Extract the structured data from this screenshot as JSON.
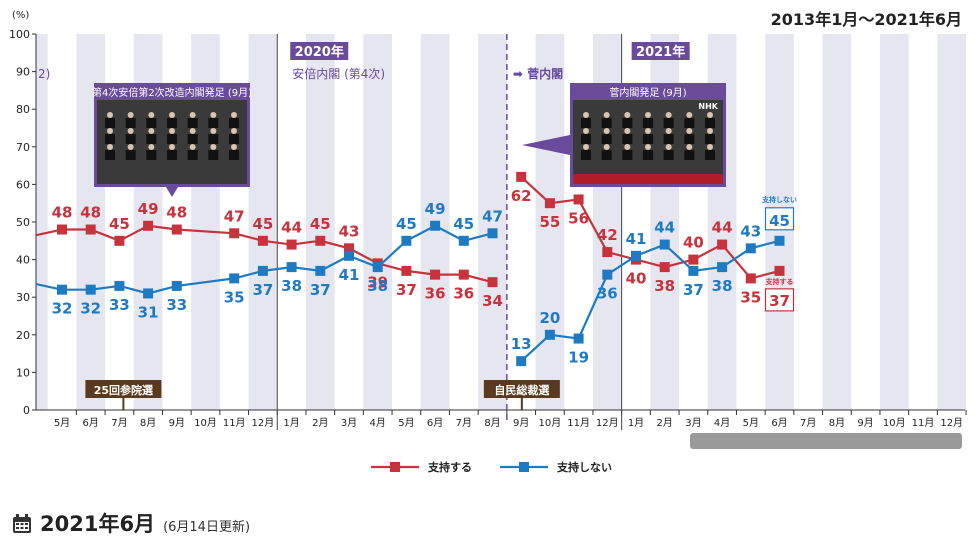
{
  "header": {
    "period": "2013年1月～2021年6月",
    "unit": "(%)"
  },
  "footer": {
    "title": "2021年6月",
    "updated": "(6月14日更新)"
  },
  "colors": {
    "support": "#c8323c",
    "nonsupport": "#1f7bc1",
    "stripe": "#e6e6f0",
    "purple": "#6a4a9a",
    "brown": "#5a3a1e"
  },
  "chart_data": {
    "type": "line",
    "categories": [
      "5月",
      "6月",
      "7月",
      "8月",
      "9月",
      "10月",
      "11月",
      "12月",
      "1月",
      "2月",
      "3月",
      "4月",
      "5月",
      "6月",
      "7月",
      "8月",
      "9月",
      "10月",
      "11月",
      "12月",
      "1月",
      "2月",
      "3月",
      "4月",
      "5月",
      "6月",
      "7月",
      "8月",
      "9月",
      "10月",
      "11月",
      "12月"
    ],
    "ylim": [
      0,
      100
    ],
    "yticks": [
      0,
      10,
      20,
      30,
      40,
      50,
      60,
      70,
      80,
      90,
      100
    ],
    "series": [
      {
        "name": "支持する",
        "color": "#c8323c",
        "values": [
          48,
          48,
          45,
          49,
          48,
          null,
          47,
          45,
          44,
          45,
          43,
          39,
          37,
          36,
          36,
          34,
          62,
          55,
          56,
          42,
          40,
          38,
          40,
          44,
          35,
          37,
          null,
          null,
          null,
          null,
          null,
          null
        ]
      },
      {
        "name": "支持しない",
        "color": "#1f7bc1",
        "values": [
          32,
          32,
          33,
          31,
          33,
          null,
          35,
          37,
          38,
          37,
          41,
          38,
          45,
          49,
          45,
          47,
          13,
          20,
          19,
          36,
          41,
          44,
          37,
          38,
          43,
          45,
          null,
          null,
          null,
          null,
          null,
          null
        ]
      }
    ],
    "labels": {
      "support": [
        "48",
        "48",
        "45",
        "49",
        "48",
        "47",
        "45",
        "44",
        "45",
        "43",
        "39",
        "37",
        "36",
        "36",
        "34",
        "62",
        "55",
        "56",
        "42",
        "40",
        "38",
        "40",
        "44",
        "35",
        "37"
      ],
      "nonsupport": [
        "32",
        "32",
        "33",
        "31",
        "33",
        "35",
        "37",
        "38",
        "37",
        "41",
        "38",
        "45",
        "49",
        "45",
        "47",
        "13",
        "20",
        "19",
        "36",
        "41",
        "44",
        "37",
        "38",
        "43",
        "45"
      ]
    },
    "annotations": {
      "year2020": "2020年",
      "abe_cabinet": "安倍内閣 (第4次)",
      "year2021": "2021年",
      "suga_cabinet": "➡ 菅内閣",
      "abe_reshuffle_photo": "第4次安倍第2次改造内閣発足 (9月)",
      "suga_launch_photo": "菅内閣発足 (9月)",
      "upper_house": "25回参院選",
      "ldp_election": "自民総裁選",
      "nhk": "NHK",
      "support_end_tag": "支持する",
      "nonsupport_end_tag": "支持しない",
      "partial_left": "",
      "partial_left_top": "2)"
    },
    "legend": {
      "support": "支持する",
      "nonsupport": "支持しない",
      "position": "bottom-center"
    },
    "grid": false
  }
}
